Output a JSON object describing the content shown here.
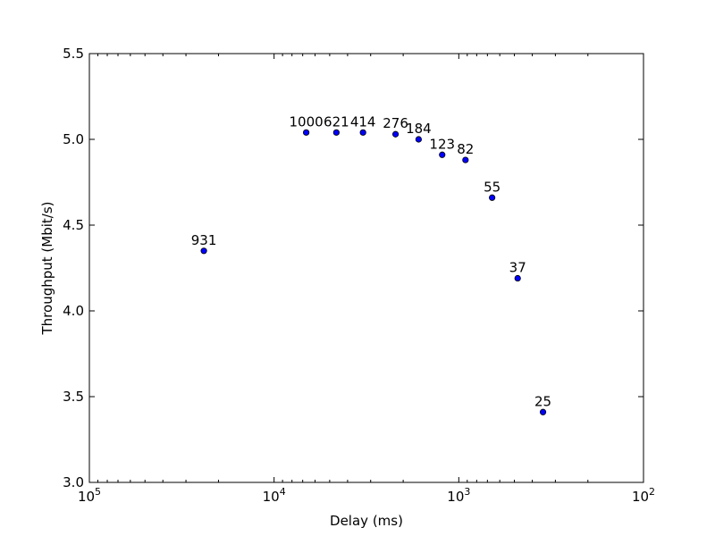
{
  "chart_data": {
    "type": "scatter",
    "title": "",
    "xlabel": "Delay (ms)",
    "ylabel": "Throughput (Mbit/s)",
    "x_scale": "log",
    "x_inverted": true,
    "xlim": [
      100000,
      100
    ],
    "ylim": [
      3.0,
      5.5
    ],
    "grid": false,
    "legend": "none",
    "marker_color": "#0000ff",
    "x_ticks": [
      {
        "value": 100000,
        "base": "10",
        "exp": "5"
      },
      {
        "value": 10000,
        "base": "10",
        "exp": "4"
      },
      {
        "value": 1000,
        "base": "10",
        "exp": "3"
      },
      {
        "value": 100,
        "base": "10",
        "exp": "2"
      }
    ],
    "y_ticks": [
      {
        "value": 3.0,
        "label": "3.0"
      },
      {
        "value": 3.5,
        "label": "3.5"
      },
      {
        "value": 4.0,
        "label": "4.0"
      },
      {
        "value": 4.5,
        "label": "4.5"
      },
      {
        "value": 5.0,
        "label": "5.0"
      },
      {
        "value": 5.5,
        "label": "5.5"
      }
    ],
    "points": [
      {
        "label": "931",
        "x": 24000,
        "y": 4.35
      },
      {
        "label": "1000",
        "x": 6700,
        "y": 5.04
      },
      {
        "label": "621",
        "x": 4600,
        "y": 5.04
      },
      {
        "label": "414",
        "x": 3300,
        "y": 5.04
      },
      {
        "label": "276",
        "x": 2200,
        "y": 5.03
      },
      {
        "label": "184",
        "x": 1650,
        "y": 5.0
      },
      {
        "label": "123",
        "x": 1230,
        "y": 4.91
      },
      {
        "label": "82",
        "x": 920,
        "y": 4.88
      },
      {
        "label": "55",
        "x": 660,
        "y": 4.66
      },
      {
        "label": "37",
        "x": 480,
        "y": 4.19
      },
      {
        "label": "25",
        "x": 350,
        "y": 3.41
      }
    ]
  }
}
